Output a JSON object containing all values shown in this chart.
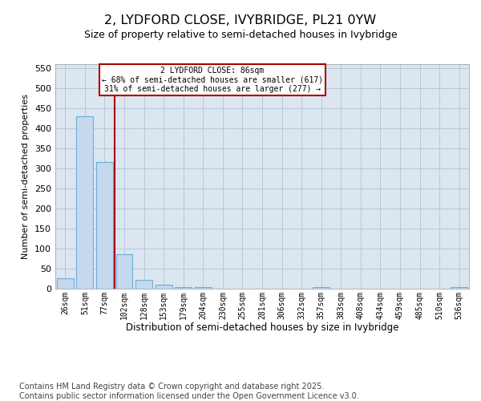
{
  "title1": "2, LYDFORD CLOSE, IVYBRIDGE, PL21 0YW",
  "title2": "Size of property relative to semi-detached houses in Ivybridge",
  "xlabel": "Distribution of semi-detached houses by size in Ivybridge",
  "ylabel": "Number of semi-detached properties",
  "categories": [
    "26sqm",
    "51sqm",
    "77sqm",
    "102sqm",
    "128sqm",
    "153sqm",
    "179sqm",
    "204sqm",
    "230sqm",
    "255sqm",
    "281sqm",
    "306sqm",
    "332sqm",
    "357sqm",
    "383sqm",
    "408sqm",
    "434sqm",
    "459sqm",
    "485sqm",
    "510sqm",
    "536sqm"
  ],
  "values": [
    27,
    430,
    317,
    86,
    22,
    10,
    5,
    4,
    0,
    0,
    0,
    0,
    0,
    4,
    0,
    0,
    0,
    0,
    0,
    0,
    4
  ],
  "bar_color": "#c5d8ee",
  "bar_edge_color": "#6baed6",
  "bg_color": "#dce6f0",
  "grid_color": "#b8c8d8",
  "annotation_text1": "2 LYDFORD CLOSE: 86sqm",
  "annotation_text2": "← 68% of semi-detached houses are smaller (617)",
  "annotation_text3": "31% of semi-detached houses are larger (277) →",
  "annotation_box_bg": "#ffffff",
  "annotation_box_edge": "#aa0000",
  "vline_color": "#aa0000",
  "ylim": [
    0,
    560
  ],
  "yticks": [
    0,
    50,
    100,
    150,
    200,
    250,
    300,
    350,
    400,
    450,
    500,
    550
  ],
  "footer": "Contains HM Land Registry data © Crown copyright and database right 2025.\nContains public sector information licensed under the Open Government Licence v3.0."
}
